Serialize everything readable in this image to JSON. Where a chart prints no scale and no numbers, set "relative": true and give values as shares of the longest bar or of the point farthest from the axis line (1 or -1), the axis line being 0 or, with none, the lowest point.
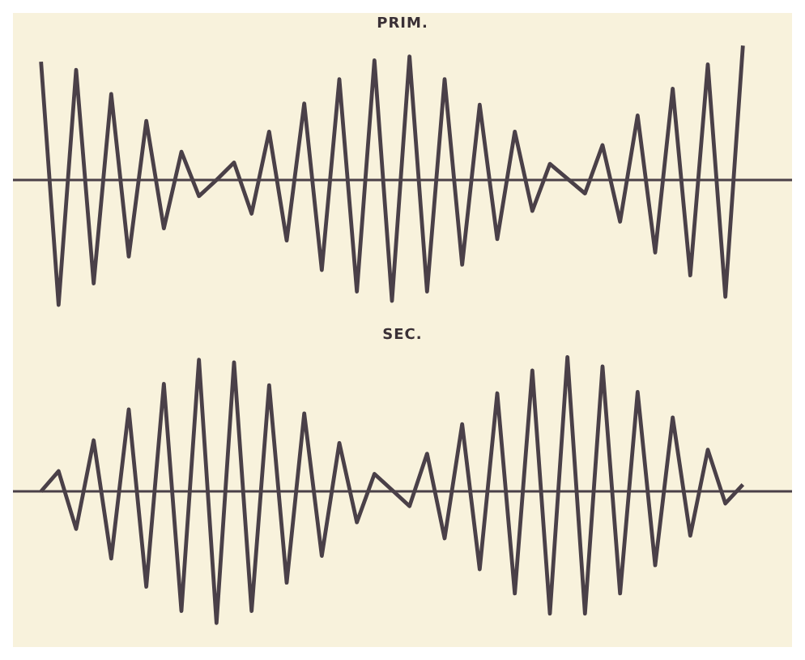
{
  "chart_data": [
    {
      "type": "line",
      "title": "PRIM.",
      "relative": true,
      "color": "#4a4048",
      "marker": "none",
      "categories": [
        null,
        null,
        null,
        null,
        null,
        null,
        null,
        null,
        null,
        null,
        null,
        null,
        null,
        null,
        null,
        null,
        null,
        null,
        null,
        null,
        null,
        null,
        null,
        null,
        null,
        null,
        null,
        null,
        null,
        null,
        null,
        null,
        null,
        null,
        null,
        null,
        null,
        null,
        null,
        null,
        null
      ],
      "values": [
        0.88,
        -0.93,
        0.82,
        -0.77,
        0.64,
        -0.57,
        0.44,
        -0.36,
        0.21,
        -0.12,
        0.0,
        0.13,
        -0.25,
        0.36,
        -0.45,
        0.57,
        -0.67,
        0.75,
        -0.83,
        0.89,
        -0.9,
        0.92,
        -0.83,
        0.75,
        -0.63,
        0.56,
        -0.44,
        0.36,
        -0.23,
        0.12,
        0.01,
        -0.1,
        0.26,
        -0.31,
        0.48,
        -0.54,
        0.68,
        -0.71,
        0.86,
        -0.87,
        1
      ]
    },
    {
      "type": "line",
      "title": "SEC.",
      "relative": true,
      "color": "#4a4048",
      "marker": "none",
      "categories": [
        null,
        null,
        null,
        null,
        null,
        null,
        null,
        null,
        null,
        null,
        null,
        null,
        null,
        null,
        null,
        null,
        null,
        null,
        null,
        null,
        null,
        null,
        null,
        null,
        null,
        null,
        null,
        null,
        null,
        null,
        null,
        null,
        null,
        null,
        null,
        null,
        null,
        null,
        null,
        null,
        null
      ],
      "values": [
        0,
        0.15,
        -0.28,
        0.38,
        -0.5,
        0.61,
        -0.71,
        0.8,
        -0.89,
        0.98,
        -0.98,
        0.96,
        -0.89,
        0.79,
        -0.68,
        0.58,
        -0.48,
        0.36,
        -0.23,
        0.13,
        0.01,
        -0.11,
        0.28,
        -0.35,
        0.5,
        -0.58,
        0.73,
        -0.76,
        0.9,
        -0.91,
        1,
        -0.91,
        0.93,
        -0.76,
        0.74,
        -0.55,
        0.55,
        -0.33,
        0.31,
        -0.09,
        0.05
      ]
    }
  ]
}
